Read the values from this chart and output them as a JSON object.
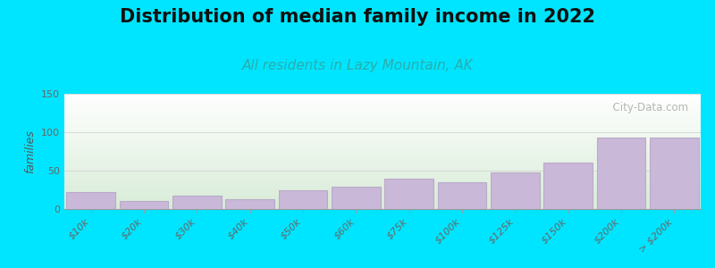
{
  "title": "Distribution of median family income in 2022",
  "subtitle": "All residents in Lazy Mountain, AK",
  "categories": [
    "$10k",
    "$20k",
    "$30k",
    "$40k",
    "$50k",
    "$60k",
    "$75k",
    "$100k",
    "$125k",
    "$150k",
    "$200k",
    "> $200k"
  ],
  "values": [
    22,
    10,
    18,
    13,
    24,
    29,
    39,
    35,
    48,
    60,
    93,
    93
  ],
  "bar_color": "#c9b8d8",
  "bar_edge_color": "#baaac8",
  "background_color": "#00e5ff",
  "plot_bg_top": "#ffffff",
  "plot_bg_bottom": "#d8ecd8",
  "ylim": [
    0,
    150
  ],
  "yticks": [
    0,
    50,
    100,
    150
  ],
  "ylabel": "families",
  "title_fontsize": 15,
  "subtitle_fontsize": 11,
  "subtitle_color": "#2aadad",
  "watermark": "  City-Data.com"
}
